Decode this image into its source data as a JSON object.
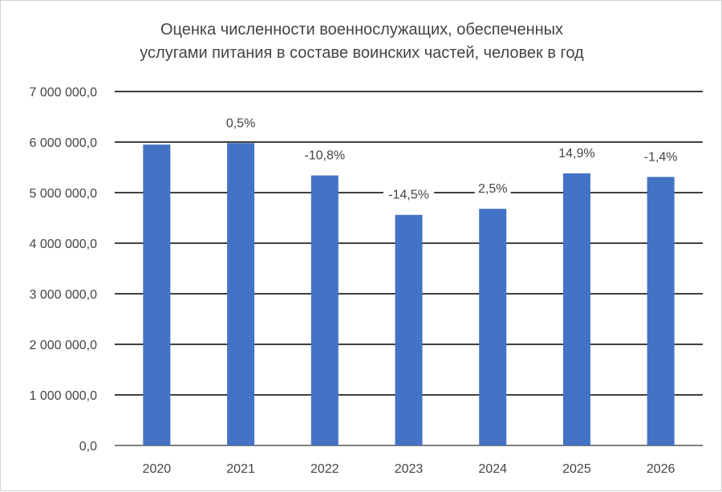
{
  "chart_data": {
    "type": "bar",
    "title_lines": [
      "Оценка численности военнослужащих, обеспеченных",
      "услугами  питания в составе воинских частей, человек в год"
    ],
    "categories": [
      "2020",
      "2021",
      "2022",
      "2023",
      "2024",
      "2025",
      "2026"
    ],
    "values": [
      5950000,
      5980000,
      5340000,
      4560000,
      4680000,
      5380000,
      5310000
    ],
    "data_labels": [
      "",
      "0,5%",
      "-10,8%",
      "-14,5%",
      "2,5%",
      "14,9%",
      "-1,4%"
    ],
    "y_ticks": [
      "0,0",
      "1 000 000,0",
      "2 000 000,0",
      "3 000 000,0",
      "4 000 000,0",
      "5 000 000,0",
      "6 000 000,0",
      "7 000 000,0"
    ],
    "ylim": [
      0,
      7000000
    ],
    "xlabel": "",
    "ylabel": "",
    "grid": true,
    "legend": "none",
    "bar_color": "#4472c4",
    "grid_color": "#000000",
    "text_color": "#444444"
  }
}
